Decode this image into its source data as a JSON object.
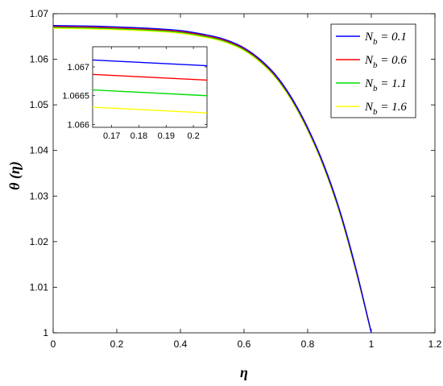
{
  "chart_data": {
    "type": "line",
    "title": "",
    "xlabel": "η",
    "ylabel": "θ (η)",
    "xlim": [
      0,
      1.2
    ],
    "ylim": [
      1.0,
      1.07
    ],
    "xticks": [
      "0",
      "0.2",
      "0.4",
      "0.6",
      "0.8",
      "1",
      "1.2"
    ],
    "yticks": [
      "1",
      "1.01",
      "1.02",
      "1.03",
      "1.04",
      "1.05",
      "1.06",
      "1.07"
    ],
    "grid": false,
    "legend_position": "top-right",
    "legend": [
      {
        "sym": "N",
        "sub": "b",
        "rest": " = 0.1"
      },
      {
        "sym": "N",
        "sub": "b",
        "rest": " = 0.6"
      },
      {
        "sym": "N",
        "sub": "b",
        "rest": " = 1.1"
      },
      {
        "sym": "N",
        "sub": "b",
        "rest": " = 1.6"
      }
    ],
    "x": [
      0,
      0.1,
      0.2,
      0.3,
      0.4,
      0.5,
      0.55,
      0.6,
      0.65,
      0.7,
      0.75,
      0.8,
      0.85,
      0.9,
      0.95,
      1.0
    ],
    "series": [
      {
        "color": "#0000ff",
        "values": [
          1.0674,
          1.0673,
          1.0671,
          1.0668,
          1.0663,
          1.0651,
          1.0641,
          1.0625,
          1.06,
          1.0565,
          1.0515,
          1.045,
          1.037,
          1.027,
          1.0145,
          1.0
        ]
      },
      {
        "color": "#ff0000",
        "values": [
          1.0672,
          1.0671,
          1.0669,
          1.0666,
          1.0661,
          1.0649,
          1.0639,
          1.0623,
          1.0598,
          1.0563,
          1.0513,
          1.0448,
          1.0368,
          1.0268,
          1.0143,
          1.0
        ]
      },
      {
        "color": "#00dd00",
        "values": [
          1.067,
          1.0669,
          1.0667,
          1.0664,
          1.0659,
          1.0647,
          1.0637,
          1.0621,
          1.0596,
          1.0561,
          1.0511,
          1.0446,
          1.0366,
          1.0266,
          1.0141,
          1.0
        ]
      },
      {
        "color": "#ffff00",
        "values": [
          1.0668,
          1.0667,
          1.0665,
          1.0662,
          1.0657,
          1.0645,
          1.0635,
          1.0619,
          1.0594,
          1.0559,
          1.0509,
          1.0444,
          1.0364,
          1.0264,
          1.0139,
          1.0
        ]
      }
    ],
    "inset": {
      "xlim": [
        0.163,
        0.205
      ],
      "ylim": [
        1.06595,
        1.06735
      ],
      "xticks": [
        0.17,
        0.18,
        0.19,
        0.2
      ],
      "xtick_labels": [
        "0.17",
        "0.18",
        "0.19",
        "0.2"
      ],
      "yticks": [
        1.066,
        1.0665,
        1.067
      ],
      "ytick_labels": [
        "1.066",
        "1.0665",
        "1.067"
      ],
      "x": [
        0.163,
        0.205
      ],
      "series": [
        {
          "color": "#0000ff",
          "values": [
            1.06712,
            1.06702
          ]
        },
        {
          "color": "#ff0000",
          "values": [
            1.06687,
            1.06677
          ]
        },
        {
          "color": "#00dd00",
          "values": [
            1.0666,
            1.0665
          ]
        },
        {
          "color": "#ffff00",
          "values": [
            1.0663,
            1.0662
          ]
        }
      ]
    }
  }
}
